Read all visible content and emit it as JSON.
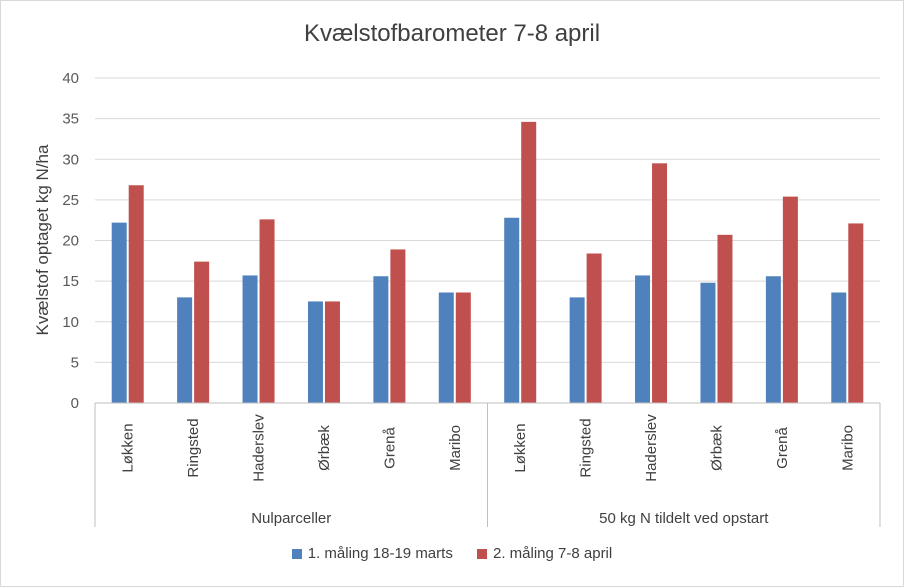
{
  "chart_data": {
    "type": "bar",
    "title": "Kvælstofbarometer 7-8 april",
    "ylabel": "Kvælstof optaget kg N/ha",
    "xlabel": "",
    "ylim": [
      0,
      40
    ],
    "yticks": [
      0,
      5,
      10,
      15,
      20,
      25,
      30,
      35,
      40
    ],
    "grid": true,
    "legend_position": "bottom",
    "groups": [
      {
        "name": "Nulparceller",
        "categories": [
          "Løkken",
          "Ringsted",
          "Haderslev",
          "Ørbæk",
          "Grenå",
          "Maribo"
        ]
      },
      {
        "name": "50 kg N tildelt ved opstart",
        "categories": [
          "Løkken",
          "Ringsted",
          "Haderslev",
          "Ørbæk",
          "Grenå",
          "Maribo"
        ]
      }
    ],
    "series": [
      {
        "name": "1. måling 18-19 marts",
        "color": "#4f81bd",
        "values": [
          22.2,
          13.0,
          15.7,
          12.5,
          15.6,
          13.6,
          22.8,
          13.0,
          15.7,
          14.8,
          15.6,
          13.6
        ]
      },
      {
        "name": "2. måling 7-8 april",
        "color": "#c0504d",
        "values": [
          26.8,
          17.4,
          22.6,
          12.5,
          18.9,
          13.6,
          34.6,
          18.4,
          29.5,
          20.7,
          25.4,
          22.1
        ]
      }
    ]
  }
}
